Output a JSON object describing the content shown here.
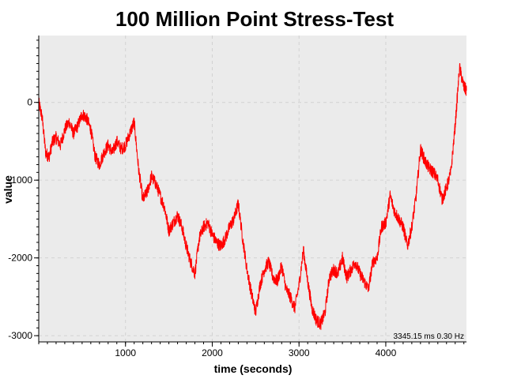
{
  "chart_data": {
    "type": "line",
    "title": "100 Million Point Stress-Test",
    "xlabel": "time (seconds)",
    "ylabel": "value",
    "xlim": [
      0,
      4930
    ],
    "ylim": [
      -3080,
      860
    ],
    "xticks": [
      1000,
      2000,
      3000,
      4000
    ],
    "xtick_labels": [
      "1000",
      "2000",
      "3000",
      "4000"
    ],
    "yticks": [
      0,
      -1000,
      -2000,
      -3000
    ],
    "ytick_labels": [
      "0",
      "-1000",
      "-2000",
      "-3000"
    ],
    "grid": true,
    "legend": "none",
    "annotation": "3345.15 ms 0.30 Hz",
    "colors": {
      "series": "#ff0000",
      "plot_background": "#ebebeb",
      "grid": "#d2d2d2",
      "axes": "#000000"
    },
    "series": [
      {
        "x": [
          0,
          40,
          80,
          120,
          160,
          200,
          250,
          300,
          350,
          400,
          450,
          500,
          550,
          600,
          650,
          700,
          750,
          800,
          850,
          900,
          950,
          1000,
          1050,
          1100,
          1150,
          1200,
          1250,
          1300,
          1350,
          1400,
          1450,
          1500,
          1550,
          1600,
          1650,
          1700,
          1750,
          1800,
          1850,
          1900,
          1950,
          2000,
          2050,
          2100,
          2150,
          2200,
          2250,
          2300,
          2350,
          2400,
          2450,
          2500,
          2550,
          2600,
          2650,
          2700,
          2750,
          2800,
          2850,
          2900,
          2950,
          3000,
          3050,
          3100,
          3150,
          3200,
          3250,
          3300,
          3350,
          3400,
          3450,
          3500,
          3550,
          3600,
          3650,
          3700,
          3750,
          3800,
          3850,
          3900,
          3950,
          4000,
          4050,
          4100,
          4150,
          4200,
          4250,
          4300,
          4350,
          4400,
          4450,
          4500,
          4550,
          4600,
          4650,
          4700,
          4750,
          4800,
          4850,
          4900,
          4930
        ],
        "values": [
          0,
          -200,
          -650,
          -700,
          -500,
          -450,
          -550,
          -350,
          -250,
          -400,
          -300,
          -150,
          -200,
          -350,
          -700,
          -800,
          -650,
          -550,
          -650,
          -500,
          -600,
          -550,
          -400,
          -250,
          -850,
          -1250,
          -1150,
          -950,
          -1050,
          -1200,
          -1350,
          -1650,
          -1550,
          -1450,
          -1600,
          -1850,
          -2050,
          -2200,
          -1750,
          -1600,
          -1550,
          -1700,
          -1800,
          -1850,
          -1750,
          -1600,
          -1500,
          -1300,
          -1750,
          -2150,
          -2450,
          -2700,
          -2350,
          -2150,
          -2050,
          -2250,
          -2300,
          -2100,
          -2400,
          -2500,
          -2650,
          -2350,
          -1900,
          -2300,
          -2650,
          -2800,
          -2850,
          -2700,
          -2250,
          -2150,
          -2200,
          -2000,
          -2250,
          -2150,
          -2050,
          -2200,
          -2300,
          -2400,
          -2050,
          -2000,
          -1600,
          -1550,
          -1200,
          -1400,
          -1500,
          -1600,
          -1850,
          -1600,
          -1200,
          -600,
          -750,
          -850,
          -900,
          -1000,
          -1250,
          -1100,
          -900,
          -300,
          450,
          200,
          150
        ]
      }
    ]
  }
}
